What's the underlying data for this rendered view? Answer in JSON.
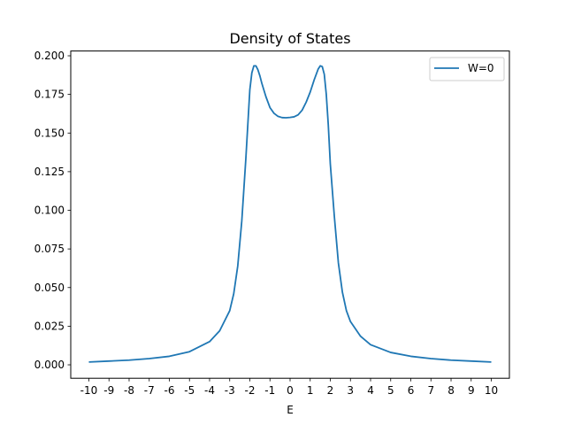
{
  "chart_data": {
    "type": "line",
    "title": "Density of States",
    "xlabel": "E",
    "ylabel": "",
    "xlim": [
      -10.9,
      10.9
    ],
    "ylim": [
      -0.0087,
      0.2031
    ],
    "xticks": [
      -10,
      -9,
      -8,
      -7,
      -6,
      -5,
      -4,
      -3,
      -2,
      -1,
      0,
      1,
      2,
      3,
      4,
      5,
      6,
      7,
      8,
      9,
      10
    ],
    "yticks": [
      0.0,
      0.025,
      0.05,
      0.075,
      0.1,
      0.125,
      0.15,
      0.175,
      0.2
    ],
    "ytick_labels": [
      "0.000",
      "0.025",
      "0.050",
      "0.075",
      "0.100",
      "0.125",
      "0.150",
      "0.175",
      "0.200"
    ],
    "grid": false,
    "legend_position": "top-right",
    "series": [
      {
        "name": "W=0",
        "color": "#1f77b4",
        "x": [
          -10,
          -9,
          -8,
          -7,
          -6,
          -5,
          -4,
          -3.5,
          -3,
          -2.8,
          -2.6,
          -2.4,
          -2.2,
          -2.0,
          -1.9,
          -1.8,
          -1.7,
          -1.6,
          -1.5,
          -1.4,
          -1.2,
          -1.0,
          -0.8,
          -0.6,
          -0.4,
          -0.2,
          0,
          0.2,
          0.4,
          0.6,
          0.8,
          1.0,
          1.2,
          1.4,
          1.5,
          1.6,
          1.7,
          1.8,
          1.9,
          2.0,
          2.2,
          2.4,
          2.6,
          2.8,
          3,
          3.5,
          4,
          5,
          6,
          7,
          8,
          9,
          10
        ],
        "y": [
          0.0018,
          0.0024,
          0.003,
          0.004,
          0.0055,
          0.0085,
          0.015,
          0.022,
          0.035,
          0.046,
          0.064,
          0.093,
          0.133,
          0.178,
          0.189,
          0.1935,
          0.1935,
          0.191,
          0.187,
          0.182,
          0.1735,
          0.1665,
          0.1628,
          0.1608,
          0.16,
          0.1599,
          0.1601,
          0.1605,
          0.1618,
          0.1648,
          0.17,
          0.1765,
          0.1845,
          0.1915,
          0.1935,
          0.193,
          0.188,
          0.175,
          0.155,
          0.13,
          0.096,
          0.066,
          0.047,
          0.035,
          0.028,
          0.0185,
          0.013,
          0.008,
          0.0055,
          0.004,
          0.003,
          0.0024,
          0.0018
        ]
      }
    ]
  }
}
